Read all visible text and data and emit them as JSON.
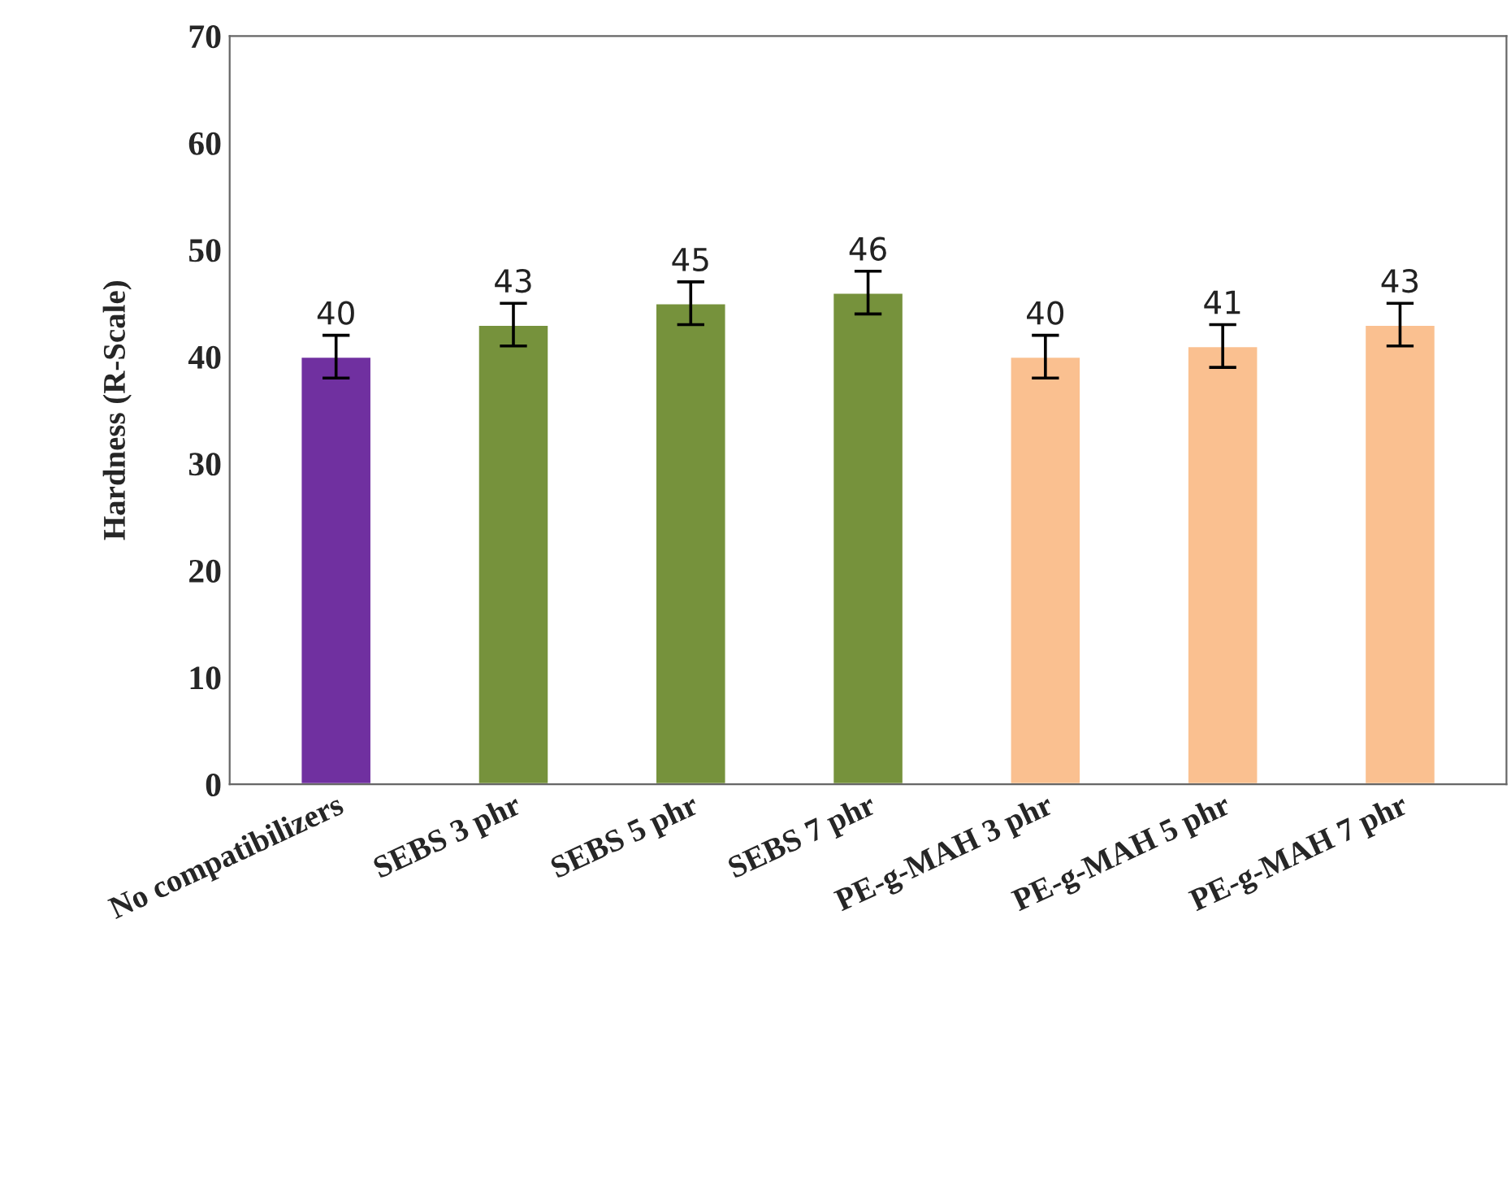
{
  "chart_data": {
    "type": "bar",
    "ylabel": "Hardness (R-Scale)",
    "categories": [
      "No compatibilizers",
      "SEBS 3 phr",
      "SEBS 5 phr",
      "SEBS 7 phr",
      "PE-g-MAH 3 phr",
      "PE-g-MAH 5 phr",
      "PE-g-MAH 7 phr"
    ],
    "values": [
      40,
      43,
      45,
      46,
      40,
      41,
      43
    ],
    "errors": [
      2,
      2,
      2,
      2,
      2,
      2,
      2
    ],
    "colors": [
      "#7030a0",
      "#76923c",
      "#76923c",
      "#76923c",
      "#fac090",
      "#fac090",
      "#fac090"
    ],
    "ylim": [
      0,
      70
    ],
    "yticks": [
      0,
      10,
      20,
      30,
      40,
      50,
      60,
      70
    ],
    "data_labels": true,
    "grid": false,
    "legend": false
  }
}
